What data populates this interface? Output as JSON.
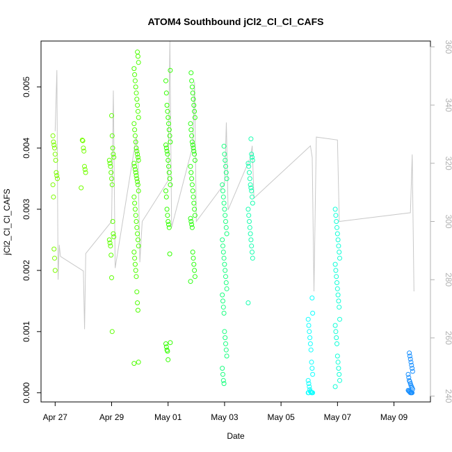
{
  "chart_data": {
    "type": "scatter",
    "title": "ATOM4 Southbound jCl2_Cl_Cl_CAFS",
    "xlabel": "Date",
    "ylabel": "jCl2_Cl_Cl_CAFS",
    "y2label": "",
    "xlim": [
      "2016-04-26T12:00",
      "2016-05-10T07:00"
    ],
    "ylim": [
      -0.00015,
      0.00575
    ],
    "y2lim": [
      238,
      362
    ],
    "x_ticks": [
      "Apr 27",
      "Apr 29",
      "May 01",
      "May 03",
      "May 05",
      "May 07",
      "May 09"
    ],
    "x_tick_dates": [
      "2016-04-27",
      "2016-04-29",
      "2016-05-01",
      "2016-05-03",
      "2016-05-05",
      "2016-05-07",
      "2016-05-09"
    ],
    "y_ticks": [
      "0.000",
      "0.001",
      "0.002",
      "0.003",
      "0.004",
      "0.005"
    ],
    "y_tick_values": [
      0.0,
      0.001,
      0.002,
      0.003,
      0.004,
      0.005
    ],
    "y2_ticks": [
      "240",
      "260",
      "280",
      "300",
      "320",
      "340",
      "360"
    ],
    "y2_tick_values": [
      240,
      260,
      280,
      300,
      320,
      340,
      360
    ],
    "grid": false,
    "legend": "none",
    "point_color_scale": "color varies along track from yellow-green (Apr 27) through green and cyan to blue (May 09)",
    "series": [
      {
        "clusters": [
          {
            "date": "2016-04-27T00:00",
            "color": "#7cfc00",
            "values": [
              0.0042,
              0.0041,
              0.00405,
              0.004,
              0.0039,
              0.0038,
              0.0036,
              0.00355,
              0.0035,
              0.0034,
              0.0032,
              0.00235,
              0.0022,
              0.002
            ]
          },
          {
            "date": "2016-04-28T00:00",
            "color": "#73ff00",
            "values": [
              0.00413,
              0.00412,
              0.004,
              0.00395,
              0.0037,
              0.00365,
              0.0036,
              0.00335
            ]
          },
          {
            "date": "2016-04-29T00:00",
            "color": "#5cff00",
            "values": [
              0.00453,
              0.0042,
              0.004,
              0.0039,
              0.00385,
              0.0038,
              0.00375,
              0.0037,
              0.0036,
              0.0035,
              0.0034,
              0.0028,
              0.0026,
              0.00255,
              0.0025,
              0.00245,
              0.0024,
              0.00225,
              0.00188,
              0.001
            ]
          },
          {
            "date": "2016-04-29T21:00",
            "color": "#4dff00",
            "values": [
              0.00557,
              0.0055,
              0.0054,
              0.0053,
              0.0052,
              0.0051,
              0.005,
              0.0049,
              0.0048,
              0.0047,
              0.0046,
              0.0045,
              0.0044,
              0.0043,
              0.0042,
              0.0041,
              0.004,
              0.00395,
              0.0039,
              0.00385,
              0.0038,
              0.00375,
              0.0037,
              0.00365,
              0.0036,
              0.00355,
              0.0035,
              0.00345,
              0.0034,
              0.0033,
              0.0032,
              0.0031,
              0.003,
              0.0029,
              0.0028,
              0.0027,
              0.0026,
              0.0025,
              0.0024,
              0.0023,
              0.0022,
              0.0021,
              0.002,
              0.0019,
              0.00165,
              0.00147,
              0.00135,
              0.0005,
              0.00048
            ]
          },
          {
            "date": "2016-05-01T00:00",
            "color": "#33ff00",
            "values": [
              0.00527,
              0.0051,
              0.0049,
              0.0047,
              0.0046,
              0.0045,
              0.0044,
              0.0043,
              0.0042,
              0.0041,
              0.00405,
              0.004,
              0.00395,
              0.0039,
              0.0038,
              0.0037,
              0.0036,
              0.0035,
              0.0034,
              0.0033,
              0.0032,
              0.003,
              0.0029,
              0.0028,
              0.00275,
              0.0027,
              0.00227,
              0.00082,
              0.0008,
              0.00075,
              0.0007,
              0.00068,
              0.00054
            ]
          },
          {
            "date": "2016-05-01T21:00",
            "color": "#2bff10",
            "values": [
              0.00523,
              0.0051,
              0.005,
              0.0049,
              0.0048,
              0.0047,
              0.0046,
              0.0045,
              0.0044,
              0.0043,
              0.0042,
              0.0041,
              0.00405,
              0.004,
              0.00395,
              0.0039,
              0.0038,
              0.0037,
              0.0036,
              0.0035,
              0.0034,
              0.0033,
              0.0032,
              0.0031,
              0.003,
              0.0029,
              0.00285,
              0.0028,
              0.00275,
              0.0027,
              0.0023,
              0.0022,
              0.0021,
              0.002,
              0.0019,
              0.00182
            ]
          },
          {
            "date": "2016-05-03T00:00",
            "color": "#1aff80",
            "values": [
              0.00403,
              0.0039,
              0.0038,
              0.0037,
              0.0036,
              0.0035,
              0.0034,
              0.0033,
              0.0032,
              0.0031,
              0.003,
              0.0029,
              0.0028,
              0.0027,
              0.0026,
              0.0025,
              0.0024,
              0.0023,
              0.0022,
              0.0021,
              0.002,
              0.0019,
              0.0018,
              0.0017,
              0.0016,
              0.0015,
              0.0014,
              0.0013,
              0.001,
              0.0009,
              0.0008,
              0.0007,
              0.0006,
              0.0004,
              0.0003,
              0.0002,
              0.00015
            ]
          },
          {
            "date": "2016-05-03T22:00",
            "color": "#18ffb0",
            "values": [
              0.00415,
              0.0039,
              0.00385,
              0.0038,
              0.00375,
              0.0037,
              0.0036,
              0.0035,
              0.0034,
              0.00335,
              0.0033,
              0.0032,
              0.0031,
              0.003,
              0.0029,
              0.0028,
              0.0027,
              0.0026,
              0.0025,
              0.0024,
              0.0023,
              0.0022,
              0.00147
            ]
          },
          {
            "date": "2016-05-06T01:00",
            "color": "#10ffff",
            "values": [
              0.00155,
              0.0013,
              0.0012,
              0.0011,
              0.001,
              0.0009,
              0.0008,
              0.0007,
              0.0005,
              0.0004,
              0.0003,
              0.0002,
              0.00015,
              0.0001,
              5e-05,
              2e-05,
              1e-05,
              0.0,
              0.0,
              0.0,
              0.0,
              0.0
            ]
          },
          {
            "date": "2016-05-07T00:00",
            "color": "#10ffd8",
            "values": [
              0.003,
              0.0029,
              0.0028,
              0.0027,
              0.0026,
              0.0025,
              0.0024,
              0.0023,
              0.0022,
              0.0021,
              0.002,
              0.0019,
              0.0018,
              0.0017,
              0.0016,
              0.0015,
              0.0014,
              0.0012,
              0.0011,
              0.001,
              0.0009,
              0.0008,
              0.0006,
              0.0005,
              0.0004,
              0.0003,
              0.0002,
              0.0001
            ]
          },
          {
            "date": "2016-05-09T14:00",
            "color": "#1a90ff",
            "values": [
              0.00065,
              0.0006,
              0.00055,
              0.0005,
              0.00045,
              0.0004,
              0.00035,
              0.0003,
              0.00025,
              0.0002,
              0.00018,
              0.00015,
              0.00012,
              0.0001,
              8e-05,
              6e-05,
              4e-05,
              3e-05,
              2e-05,
              1e-05,
              0.0,
              0.0,
              0.0,
              0.0
            ]
          }
        ]
      },
      {
        "axis": "right",
        "color": "#c8c8c8",
        "x": [
          "2016-04-27T00:00",
          "2016-04-27T01:30",
          "2016-04-27T02:30",
          "2016-04-27T03:30",
          "2016-04-27T04:30",
          "2016-04-28T00:00",
          "2016-04-28T01:00",
          "2016-04-28T02:00",
          "2016-04-29T00:00",
          "2016-04-29T01:30",
          "2016-04-29T03:00",
          "2016-04-29T21:00",
          "2016-04-29T22:30",
          "2016-04-30T00:00",
          "2016-04-30T02:00",
          "2016-05-01T00:00",
          "2016-05-01T01:30",
          "2016-05-01T03:00",
          "2016-05-01T21:00",
          "2016-05-01T22:30",
          "2016-05-02T00:00",
          "2016-05-03T00:00",
          "2016-05-03T01:30",
          "2016-05-03T03:00",
          "2016-05-03T22:00",
          "2016-05-03T23:30",
          "2016-05-04T01:00",
          "2016-05-06T01:00",
          "2016-05-06T02:30",
          "2016-05-06T04:00",
          "2016-05-06T06:00",
          "2016-05-07T00:00",
          "2016-05-07T01:30",
          "2016-05-09T14:00",
          "2016-05-09T15:30",
          "2016-05-09T17:00"
        ],
        "values": [
          331,
          352,
          280,
          292,
          288,
          283,
          263,
          289,
          300,
          345,
          284,
          329,
          320,
          286,
          300,
          314,
          362,
          298,
          326,
          348,
          300,
          313,
          334,
          304,
          322,
          326,
          308,
          326,
          322,
          276,
          329,
          328,
          300,
          303,
          323,
          276
        ]
      }
    ]
  }
}
